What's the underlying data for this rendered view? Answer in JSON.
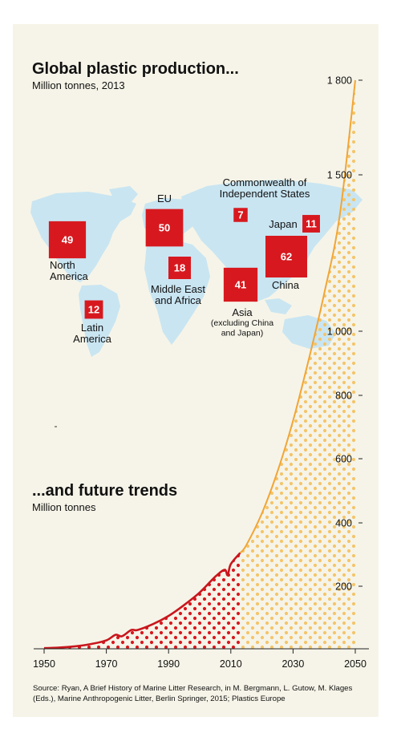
{
  "map": {
    "title": "Global plastic production...",
    "subtitle": "Million tonnes, 2013",
    "regions": [
      {
        "id": "north-america",
        "value": 49,
        "label_lines": [
          "North",
          "America"
        ],
        "note_lines": []
      },
      {
        "id": "latin-america",
        "value": 12,
        "label_lines": [
          "Latin",
          "America"
        ],
        "note_lines": []
      },
      {
        "id": "eu",
        "value": 50,
        "label_lines": [
          "EU"
        ],
        "note_lines": []
      },
      {
        "id": "middle-east-africa",
        "value": 18,
        "label_lines": [
          "Middle East",
          "and Africa"
        ],
        "note_lines": []
      },
      {
        "id": "cis",
        "value": 7,
        "label_lines": [
          "Commonwealth of",
          "Independent States"
        ],
        "note_lines": []
      },
      {
        "id": "japan",
        "value": 11,
        "label_lines": [
          "Japan"
        ],
        "note_lines": []
      },
      {
        "id": "china",
        "value": 62,
        "label_lines": [
          "China"
        ],
        "note_lines": []
      },
      {
        "id": "asia",
        "value": 41,
        "label_lines": [
          "Asia"
        ],
        "note_lines": [
          "(excluding China",
          "and Japan)"
        ]
      }
    ]
  },
  "chart_data": {
    "type": "area",
    "title": "...and future trends",
    "ylabel": "Million tonnes",
    "xlabel": "",
    "xlim": [
      1950,
      2050
    ],
    "ylim": [
      0,
      1800
    ],
    "x_ticks": [
      1950,
      1970,
      1990,
      2010,
      2030,
      2050
    ],
    "y_ticks": [
      200,
      400,
      600,
      800,
      1000,
      1500,
      1800
    ],
    "y_tick_labels": [
      "200",
      "400",
      "600",
      "800",
      "1 000",
      "1 500",
      "1 800"
    ],
    "y_axis_side": "right",
    "grid": false,
    "series": [
      {
        "kind": "historical",
        "color": "#c8161d",
        "points": [
          [
            1950,
            2
          ],
          [
            1955,
            4
          ],
          [
            1960,
            8
          ],
          [
            1965,
            15
          ],
          [
            1970,
            27
          ],
          [
            1973,
            45
          ],
          [
            1975,
            40
          ],
          [
            1978,
            60
          ],
          [
            1980,
            60
          ],
          [
            1985,
            79
          ],
          [
            1990,
            105
          ],
          [
            1995,
            140
          ],
          [
            2000,
            180
          ],
          [
            2005,
            230
          ],
          [
            2008,
            252
          ],
          [
            2009,
            235
          ],
          [
            2010,
            270
          ],
          [
            2013,
            305
          ]
        ]
      },
      {
        "kind": "projection",
        "color": "#f1a536",
        "points": [
          [
            2013,
            305
          ],
          [
            2015,
            330
          ],
          [
            2020,
            430
          ],
          [
            2025,
            560
          ],
          [
            2030,
            720
          ],
          [
            2035,
            910
          ],
          [
            2040,
            1120
          ],
          [
            2045,
            1370
          ],
          [
            2050,
            1800
          ]
        ]
      }
    ]
  },
  "source": "Source: Ryan, A Brief History of Marine Litter Research, in M. Bergmann, L. Gutow, M. Klages (Eds.), Marine Anthropogenic Litter, Berlin Springer, 2015; Plastics Europe",
  "colors": {
    "background": "#f6f4e8",
    "land": "#c9e5f2",
    "box": "#d7191f",
    "historical": "#c8161d",
    "projection": "#f1a536"
  }
}
